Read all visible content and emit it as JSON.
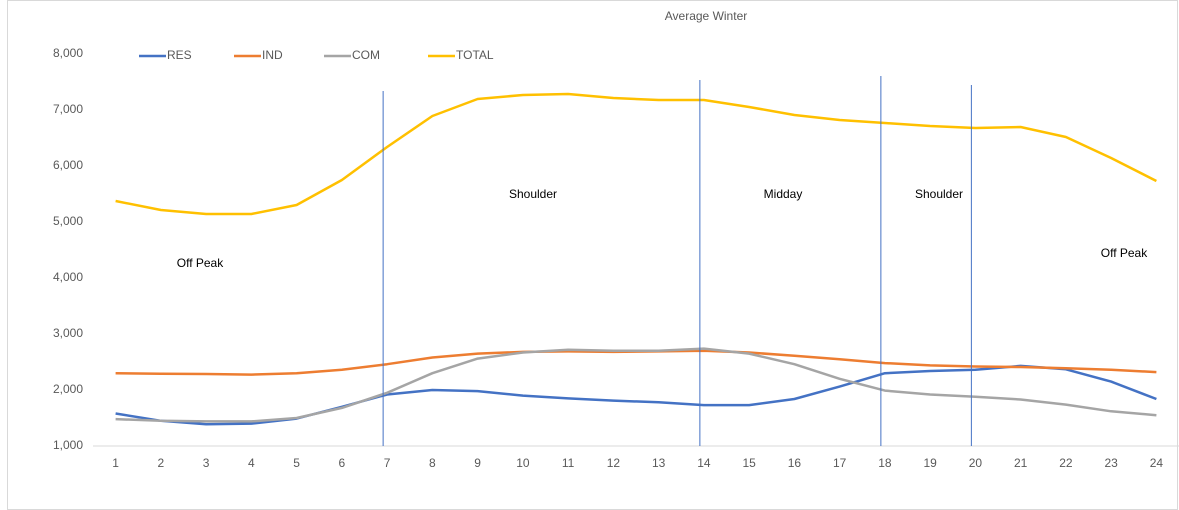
{
  "chart_data": {
    "type": "line",
    "title": "Average Winter",
    "categories": [
      "1",
      "2",
      "3",
      "4",
      "5",
      "6",
      "7",
      "8",
      "9",
      "10",
      "11",
      "12",
      "13",
      "14",
      "15",
      "16",
      "17",
      "18",
      "19",
      "20",
      "21",
      "22",
      "23",
      "24"
    ],
    "series": [
      {
        "name": "RES",
        "color": "#4472c4",
        "values": [
          1580,
          1450,
          1390,
          1400,
          1490,
          1700,
          1920,
          2000,
          1980,
          1900,
          1850,
          1810,
          1780,
          1730,
          1730,
          1840,
          2060,
          2300,
          2340,
          2360,
          2430,
          2370,
          2150,
          1840
        ]
      },
      {
        "name": "IND",
        "color": "#ed7d31",
        "values": [
          2300,
          2290,
          2285,
          2275,
          2300,
          2360,
          2460,
          2580,
          2650,
          2680,
          2690,
          2680,
          2690,
          2700,
          2670,
          2610,
          2550,
          2480,
          2440,
          2420,
          2410,
          2390,
          2360,
          2320
        ]
      },
      {
        "name": "COM",
        "color": "#a5a5a5",
        "values": [
          1480,
          1450,
          1440,
          1440,
          1500,
          1680,
          1950,
          2300,
          2560,
          2670,
          2720,
          2700,
          2700,
          2740,
          2650,
          2460,
          2200,
          1990,
          1920,
          1880,
          1830,
          1740,
          1620,
          1550
        ]
      },
      {
        "name": "TOTAL",
        "color": "#ffc000",
        "values": [
          5375,
          5214,
          5143,
          5143,
          5304,
          5750,
          6339,
          6893,
          7196,
          7268,
          7286,
          7214,
          7179,
          7179,
          7054,
          6911,
          6821,
          6768,
          6714,
          6679,
          6696,
          6518,
          6143,
          5732
        ]
      }
    ],
    "ylim": [
      1000,
      8000
    ],
    "yticks": [
      {
        "value": 1000,
        "label": "1,000"
      },
      {
        "value": 2000,
        "label": "2,000"
      },
      {
        "value": 3000,
        "label": "3,000"
      },
      {
        "value": 4000,
        "label": "4,000"
      },
      {
        "value": 5000,
        "label": "5,000"
      },
      {
        "value": 6000,
        "label": "6,000"
      },
      {
        "value": 7000,
        "label": "7,000"
      },
      {
        "value": 8000,
        "label": "8,000"
      }
    ],
    "grid": false,
    "legend": "top-left",
    "period_lines": [
      7,
      14,
      18,
      20
    ],
    "annotations": [
      "Off Peak",
      "Shoulder",
      "Midday",
      "Shoulder",
      "Off Peak"
    ]
  }
}
